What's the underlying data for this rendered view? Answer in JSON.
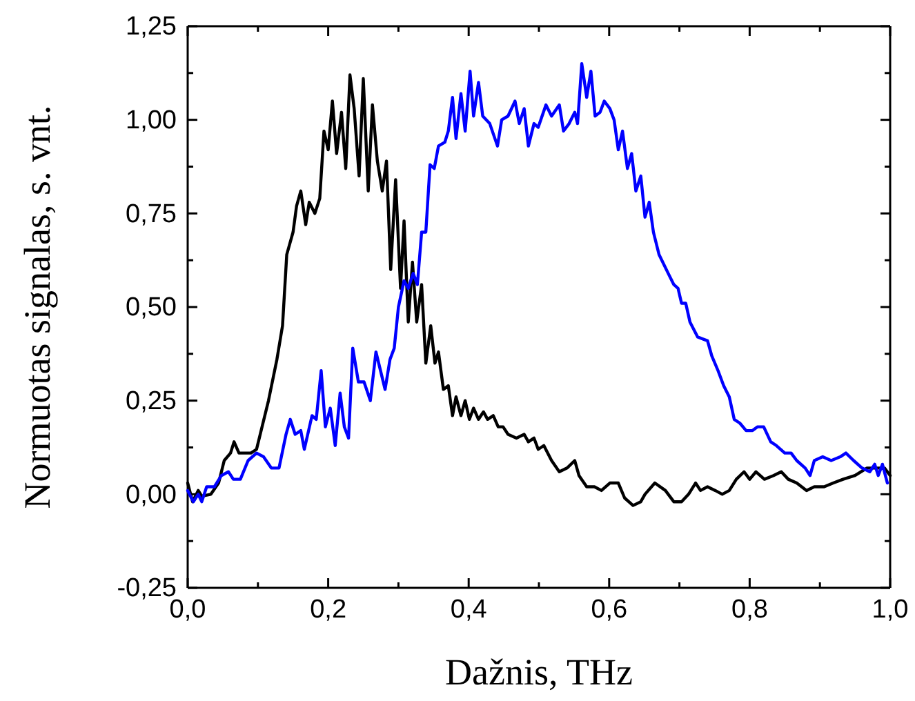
{
  "chart_data": {
    "type": "line",
    "xlabel": "Dažnis, THz",
    "ylabel": "Normuotas signalas, s. vnt.",
    "xlim": [
      0,
      1
    ],
    "ylim": [
      -0.25,
      1.25
    ],
    "xticks": [
      {
        "value": 0,
        "label": "0,0"
      },
      {
        "value": 0.1,
        "label": null
      },
      {
        "value": 0.2,
        "label": "0,2"
      },
      {
        "value": 0.3,
        "label": null
      },
      {
        "value": 0.4,
        "label": "0,4"
      },
      {
        "value": 0.5,
        "label": null
      },
      {
        "value": 0.6,
        "label": "0,6"
      },
      {
        "value": 0.7,
        "label": null
      },
      {
        "value": 0.8,
        "label": "0,8"
      },
      {
        "value": 0.9,
        "label": null
      },
      {
        "value": 1,
        "label": "1,0"
      }
    ],
    "yticks": [
      {
        "value": -0.25,
        "label": "-0,25"
      },
      {
        "value": -0.125,
        "label": null
      },
      {
        "value": 0,
        "label": "0,00"
      },
      {
        "value": 0.125,
        "label": null
      },
      {
        "value": 0.25,
        "label": "0,25"
      },
      {
        "value": 0.375,
        "label": null
      },
      {
        "value": 0.5,
        "label": "0,50"
      },
      {
        "value": 0.625,
        "label": null
      },
      {
        "value": 0.75,
        "label": "0,75"
      },
      {
        "value": 0.875,
        "label": null
      },
      {
        "value": 1,
        "label": "1,00"
      },
      {
        "value": 1.125,
        "label": null
      },
      {
        "value": 1.25,
        "label": "1,25"
      }
    ],
    "grid": false,
    "marker": "none",
    "line_style": "solid",
    "series": [
      {
        "color": "#000000",
        "x": [
          0,
          0.007,
          0.015,
          0.02,
          0.033,
          0.044,
          0.052,
          0.061,
          0.066,
          0.073,
          0.081,
          0.09,
          0.098,
          0.115,
          0.127,
          0.135,
          0.141,
          0.15,
          0.155,
          0.161,
          0.168,
          0.173,
          0.181,
          0.188,
          0.194,
          0.2,
          0.206,
          0.212,
          0.219,
          0.225,
          0.231,
          0.237,
          0.244,
          0.25,
          0.257,
          0.263,
          0.27,
          0.277,
          0.283,
          0.289,
          0.296,
          0.303,
          0.308,
          0.314,
          0.32,
          0.326,
          0.333,
          0.339,
          0.346,
          0.352,
          0.357,
          0.364,
          0.371,
          0.377,
          0.382,
          0.389,
          0.395,
          0.401,
          0.407,
          0.414,
          0.421,
          0.427,
          0.435,
          0.442,
          0.449,
          0.456,
          0.468,
          0.479,
          0.485,
          0.493,
          0.499,
          0.507,
          0.518,
          0.529,
          0.54,
          0.551,
          0.557,
          0.568,
          0.579,
          0.589,
          0.601,
          0.613,
          0.622,
          0.634,
          0.645,
          0.651,
          0.665,
          0.68,
          0.692,
          0.703,
          0.713,
          0.723,
          0.73,
          0.74,
          0.751,
          0.761,
          0.771,
          0.781,
          0.792,
          0.8,
          0.809,
          0.821,
          0.834,
          0.845,
          0.855,
          0.867,
          0.881,
          0.892,
          0.906,
          0.919,
          0.933,
          0.95,
          0.967,
          0.979,
          0.992,
          1
        ],
        "values": [
          0.03,
          -0.02,
          0.01,
          -0.005,
          0,
          0.03,
          0.09,
          0.11,
          0.14,
          0.11,
          0.11,
          0.11,
          0.12,
          0.25,
          0.36,
          0.45,
          0.64,
          0.7,
          0.77,
          0.81,
          0.72,
          0.78,
          0.75,
          0.79,
          0.97,
          0.92,
          1.05,
          0.91,
          1.02,
          0.87,
          1.12,
          1.03,
          0.85,
          1.11,
          0.81,
          1.04,
          0.89,
          0.81,
          0.89,
          0.6,
          0.84,
          0.55,
          0.73,
          0.46,
          0.62,
          0.46,
          0.56,
          0.35,
          0.45,
          0.35,
          0.38,
          0.28,
          0.29,
          0.21,
          0.26,
          0.21,
          0.25,
          0.2,
          0.23,
          0.2,
          0.22,
          0.2,
          0.21,
          0.18,
          0.18,
          0.16,
          0.15,
          0.16,
          0.14,
          0.15,
          0.12,
          0.13,
          0.09,
          0.06,
          0.07,
          0.09,
          0.05,
          0.02,
          0.02,
          0.01,
          0.03,
          0.03,
          -0.01,
          -0.03,
          -0.02,
          0,
          0.03,
          0.01,
          -0.02,
          -0.02,
          0,
          0.03,
          0.01,
          0.02,
          0.01,
          0,
          0.01,
          0.04,
          0.06,
          0.04,
          0.06,
          0.04,
          0.05,
          0.06,
          0.04,
          0.03,
          0.01,
          0.02,
          0.02,
          0.03,
          0.04,
          0.05,
          0.07,
          0.07,
          0.07,
          0.05
        ]
      },
      {
        "color": "#0000ff",
        "x": [
          0,
          0.008,
          0.015,
          0.02,
          0.027,
          0.038,
          0.048,
          0.058,
          0.065,
          0.075,
          0.086,
          0.098,
          0.108,
          0.119,
          0.13,
          0.14,
          0.146,
          0.153,
          0.161,
          0.166,
          0.177,
          0.183,
          0.19,
          0.196,
          0.203,
          0.21,
          0.217,
          0.223,
          0.229,
          0.235,
          0.243,
          0.251,
          0.26,
          0.268,
          0.281,
          0.288,
          0.294,
          0.3,
          0.308,
          0.314,
          0.321,
          0.327,
          0.333,
          0.339,
          0.345,
          0.351,
          0.357,
          0.366,
          0.371,
          0.377,
          0.382,
          0.389,
          0.395,
          0.402,
          0.407,
          0.414,
          0.42,
          0.43,
          0.441,
          0.447,
          0.456,
          0.466,
          0.472,
          0.479,
          0.485,
          0.493,
          0.499,
          0.51,
          0.518,
          0.529,
          0.535,
          0.543,
          0.551,
          0.555,
          0.561,
          0.568,
          0.574,
          0.58,
          0.587,
          0.593,
          0.601,
          0.607,
          0.613,
          0.619,
          0.626,
          0.632,
          0.638,
          0.645,
          0.651,
          0.657,
          0.663,
          0.671,
          0.684,
          0.692,
          0.698,
          0.703,
          0.709,
          0.715,
          0.726,
          0.74,
          0.746,
          0.755,
          0.763,
          0.771,
          0.778,
          0.786,
          0.795,
          0.804,
          0.811,
          0.82,
          0.83,
          0.838,
          0.85,
          0.859,
          0.867,
          0.879,
          0.886,
          0.892,
          0.904,
          0.916,
          0.929,
          0.937,
          0.948,
          0.96,
          0.971,
          0.978,
          0.983,
          0.989,
          0.996
        ],
        "values": [
          0.01,
          -0.02,
          0,
          -0.02,
          0.02,
          0.02,
          0.05,
          0.06,
          0.04,
          0.04,
          0.09,
          0.11,
          0.1,
          0.07,
          0.07,
          0.16,
          0.2,
          0.16,
          0.17,
          0.12,
          0.21,
          0.2,
          0.33,
          0.18,
          0.23,
          0.13,
          0.27,
          0.18,
          0.15,
          0.39,
          0.3,
          0.3,
          0.25,
          0.38,
          0.28,
          0.36,
          0.39,
          0.5,
          0.57,
          0.55,
          0.59,
          0.56,
          0.7,
          0.7,
          0.88,
          0.87,
          0.93,
          0.94,
          0.97,
          1.06,
          0.95,
          1.07,
          0.97,
          1.13,
          1.01,
          1.1,
          1.01,
          0.99,
          0.93,
          1,
          1.01,
          1.05,
          0.99,
          1.03,
          0.93,
          0.99,
          0.98,
          1.04,
          1.01,
          1.04,
          0.97,
          0.99,
          1.02,
          0.99,
          1.15,
          1.06,
          1.13,
          1.01,
          1.02,
          1.05,
          1.03,
          1,
          0.92,
          0.97,
          0.87,
          0.91,
          0.81,
          0.85,
          0.74,
          0.78,
          0.7,
          0.64,
          0.59,
          0.56,
          0.55,
          0.51,
          0.51,
          0.46,
          0.42,
          0.41,
          0.37,
          0.33,
          0.29,
          0.26,
          0.2,
          0.19,
          0.17,
          0.17,
          0.18,
          0.18,
          0.14,
          0.13,
          0.11,
          0.11,
          0.09,
          0.07,
          0.05,
          0.09,
          0.1,
          0.09,
          0.1,
          0.11,
          0.09,
          0.07,
          0.06,
          0.08,
          0.05,
          0.08,
          0.03
        ]
      }
    ]
  }
}
